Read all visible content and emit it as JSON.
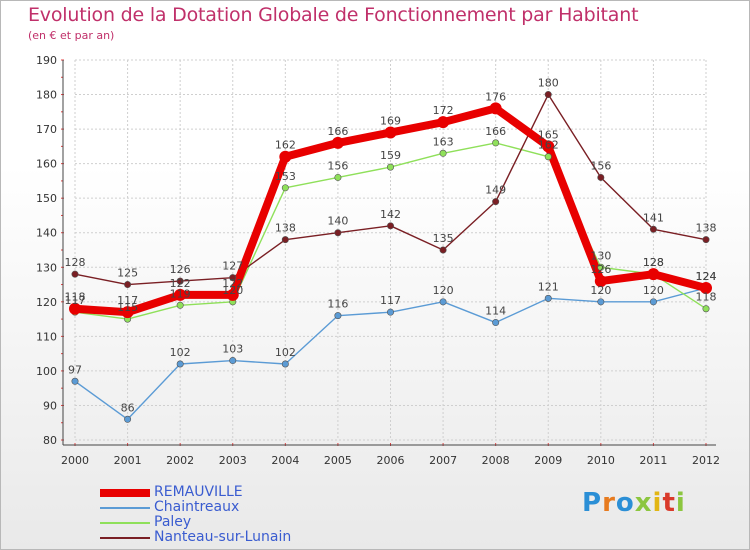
{
  "title": "Evolution de la Dotation Globale de Fonctionnement par Habitant",
  "subtitle": "(en € et par an)",
  "brand": {
    "text": "Proxiti",
    "letters": [
      {
        "ch": "P",
        "color": "#2b8fd6"
      },
      {
        "ch": "r",
        "color": "#e77b1f"
      },
      {
        "ch": "o",
        "color": "#2b8fd6"
      },
      {
        "ch": "x",
        "color": "#8cc63f"
      },
      {
        "ch": "i",
        "color": "#e2b614"
      },
      {
        "ch": "t",
        "color": "#d93a2b"
      },
      {
        "ch": "i",
        "color": "#8cc63f"
      }
    ]
  },
  "chart_data": {
    "type": "line",
    "x": [
      "2000",
      "2001",
      "2002",
      "2003",
      "2004",
      "2005",
      "2006",
      "2007",
      "2008",
      "2009",
      "2010",
      "2011",
      "2012"
    ],
    "ylim": [
      80,
      190
    ],
    "yticks": [
      "80",
      "90",
      "100",
      "110",
      "120",
      "130",
      "140",
      "150",
      "160",
      "170",
      "180",
      "190"
    ],
    "grid": true,
    "legend_position": "bottom-left",
    "series": [
      {
        "name": "REMAUVILLE",
        "color": "#e80000",
        "values": [
          118,
          117,
          122,
          122,
          162,
          166,
          169,
          172,
          176,
          165,
          126,
          128,
          124
        ],
        "labels": [
          "118",
          "117",
          "122",
          "122",
          "162",
          "166",
          "169",
          "172",
          "176",
          "165",
          "126",
          "128",
          "124"
        ]
      },
      {
        "name": "Chaintreaux",
        "color": "#5b9bd5",
        "values": [
          97,
          86,
          102,
          103,
          102,
          116,
          117,
          120,
          114,
          121,
          120,
          120,
          124
        ],
        "labels": [
          "97",
          "86",
          "102",
          "103",
          "102",
          "116",
          "117",
          "120",
          "114",
          "121",
          "120",
          "120",
          "124"
        ]
      },
      {
        "name": "Paley",
        "color": "#8fe05a",
        "values": [
          117,
          115,
          119,
          120,
          153,
          156,
          159,
          163,
          166,
          162,
          130,
          128,
          118
        ],
        "labels": [
          "117",
          "115",
          "119",
          "120",
          "153",
          "156",
          "159",
          "163",
          "166",
          "162",
          "130",
          "128",
          "118"
        ]
      },
      {
        "name": "Nanteau-sur-Lunain",
        "color": "#7a1f24",
        "values": [
          128,
          125,
          126,
          127,
          138,
          140,
          142,
          135,
          149,
          180,
          156,
          141,
          138
        ],
        "labels": [
          "128",
          "125",
          "126",
          "127",
          "138",
          "140",
          "142",
          "135",
          "149",
          "180",
          "156",
          "141",
          "138"
        ]
      }
    ]
  }
}
